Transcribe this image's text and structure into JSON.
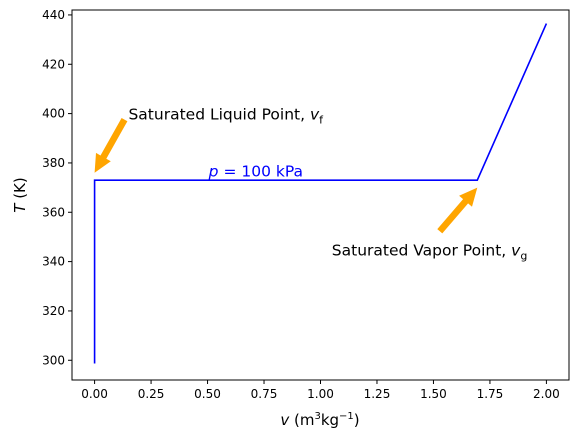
{
  "chart_data": {
    "type": "line",
    "xlabel": {
      "main": "v",
      "unit_open": " (m",
      "unit_sup1": "3",
      "unit_mid": "kg",
      "unit_sup2": "−1",
      "unit_close": ")"
    },
    "ylabel": {
      "main": "T",
      "unit": " (K)"
    },
    "xlim": [
      -0.1,
      2.1
    ],
    "ylim": [
      292,
      442
    ],
    "xticks": [
      0.0,
      0.25,
      0.5,
      0.75,
      1.0,
      1.25,
      1.5,
      1.75,
      2.0
    ],
    "xtick_labels": [
      "0.00",
      "0.25",
      "0.50",
      "0.75",
      "1.00",
      "1.25",
      "1.50",
      "1.75",
      "2.00"
    ],
    "yticks": [
      300,
      320,
      340,
      360,
      380,
      400,
      420,
      440
    ],
    "ytick_labels": [
      "300",
      "320",
      "340",
      "360",
      "380",
      "400",
      "420",
      "440"
    ],
    "grid": false,
    "series": [
      {
        "color": "#0000ff",
        "x": [
          0.0,
          0.0,
          1.694,
          2.0
        ],
        "y": [
          298.7,
          373.0,
          373.0,
          436.5
        ]
      }
    ],
    "annotations": [
      {
        "main": "Saturated Liquid Point, ",
        "var": "v",
        "sub": "f",
        "color": "#000000",
        "text_x": 0.15,
        "text_y": 400,
        "arrow_tip": [
          0.0,
          376
        ],
        "arrow_color": "#ffa500"
      },
      {
        "main": "Saturated Vapor Point, ",
        "var": "v",
        "sub": "g",
        "color": "#000000",
        "text_x": 1.05,
        "text_y": 345,
        "arrow_tip": [
          1.694,
          370
        ],
        "arrow_color": "#ffa500"
      },
      {
        "main": " = 100 kPa",
        "var": "p",
        "sub": "",
        "color": "#0000ff",
        "text_x": 0.505,
        "text_y": 377,
        "arrow_tip": null,
        "arrow_color": null
      }
    ]
  }
}
